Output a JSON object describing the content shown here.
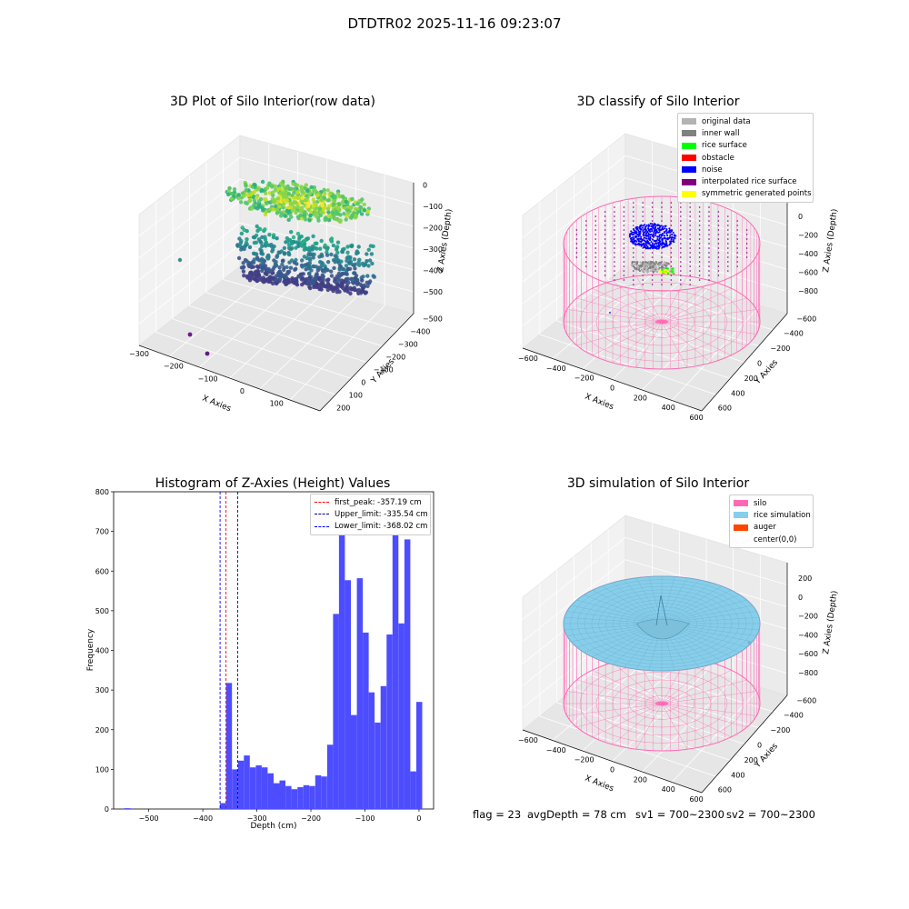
{
  "suptitle": "DTDTR02 2025-11-16 09:23:07",
  "chart_data": [
    {
      "type": "scatter",
      "subtype": "3d",
      "title": "3D Plot of Silo Interior(row data)",
      "xlabel": "X Axies",
      "ylabel": "Y Axies",
      "zlabel": "Z Axies (Depth)",
      "x_ticks": [
        "−300",
        "−200",
        "−100",
        "0",
        "100"
      ],
      "y_ticks": [
        "200",
        "100",
        "0",
        "−100",
        "−200",
        "−300",
        "−400",
        "−500"
      ],
      "z_ticks": [
        "0",
        "−100",
        "−200",
        "−300",
        "−400",
        "−500"
      ],
      "colormap": "viridis",
      "outliers": [
        {
          "x": -310,
          "y": 100,
          "z": -420
        },
        {
          "x": -230,
          "y": -330,
          "z": -520
        },
        {
          "x": -180,
          "y": -420,
          "z": -540
        }
      ]
    },
    {
      "type": "scatter",
      "subtype": "3d",
      "title": "3D classify of Silo Interior",
      "xlabel": "X Axies",
      "ylabel": "Y Axies",
      "zlabel": "Z Axies (Depth)",
      "x_ticks": [
        "−600",
        "−400",
        "−200",
        "0",
        "200",
        "400",
        "600"
      ],
      "y_ticks": [
        "600",
        "400",
        "200",
        "0",
        "−200",
        "−400",
        "−600"
      ],
      "z_ticks": [
        "0",
        "−200",
        "−400",
        "−600",
        "−800"
      ],
      "legend": [
        {
          "label": "original data",
          "color": "#b3b3b3"
        },
        {
          "label": "inner wall",
          "color": "#808080"
        },
        {
          "label": "rice surface",
          "color": "#00ff00"
        },
        {
          "label": "obstacle",
          "color": "#ff0000"
        },
        {
          "label": "noise",
          "color": "#0000ff"
        },
        {
          "label": "interpolated rice surface",
          "color": "#800080"
        },
        {
          "label": "symmetric generated points",
          "color": "#ffff00"
        }
      ],
      "silo_color": "#ff69b4"
    },
    {
      "type": "bar",
      "subtype": "histogram",
      "title": "Histogram of Z-Axies (Height) Values",
      "xlabel": "Depth (cm)",
      "ylabel": "Frequency",
      "xlim": [
        -565,
        27
      ],
      "ylim": [
        0,
        800
      ],
      "x_ticks": [
        "−500",
        "−400",
        "−300",
        "−200",
        "−100",
        "0"
      ],
      "y_ticks": [
        "0",
        "100",
        "200",
        "300",
        "400",
        "500",
        "600",
        "700",
        "800"
      ],
      "bar_color": "#4d4dff",
      "bins_left_edges": [
        -545,
        -368,
        -357,
        -346,
        -335,
        -324,
        -313,
        -302,
        -291,
        -280,
        -269,
        -258,
        -247,
        -236,
        -225,
        -214,
        -203,
        -192,
        -181,
        -170,
        -159,
        -148,
        -137,
        -126,
        -115,
        -104,
        -93,
        -82,
        -71,
        -60,
        -49,
        -38,
        -27,
        -16,
        -5
      ],
      "bin_width": 11,
      "values": [
        2,
        15,
        318,
        100,
        122,
        135,
        105,
        110,
        105,
        90,
        65,
        72,
        58,
        50,
        55,
        60,
        58,
        85,
        82,
        162,
        492,
        757,
        577,
        237,
        582,
        445,
        294,
        218,
        310,
        440,
        700,
        468,
        680,
        95,
        270
      ],
      "lines": [
        {
          "label": "first_peak: -357.19 cm",
          "x": -357.19,
          "color": "#ff0000"
        },
        {
          "label": "Upper_limit: -335.54 cm",
          "x": -335.54,
          "color": "#00008b"
        },
        {
          "label": "Lower_limit: -368.02 cm",
          "x": -368.02,
          "color": "#0000ff"
        }
      ]
    },
    {
      "type": "scatter",
      "subtype": "3d-surface",
      "title": "3D simulation of Silo Interior",
      "xlabel": "X Axies",
      "ylabel": "Y Axies",
      "zlabel": "Z Axies (Depth)",
      "x_ticks": [
        "−600",
        "−400",
        "−200",
        "0",
        "200",
        "400",
        "600"
      ],
      "y_ticks": [
        "600",
        "400",
        "200",
        "0",
        "−200",
        "−400",
        "−600"
      ],
      "z_ticks": [
        "200",
        "0",
        "−200",
        "−400",
        "−600",
        "−800"
      ],
      "legend": [
        {
          "label": "silo",
          "color": "#ff69b4"
        },
        {
          "label": "rice simulation",
          "color": "#87ceeb"
        },
        {
          "label": "auger",
          "color": "#ff4500"
        },
        {
          "label": "center(0,0)",
          "color": "#ffffff"
        }
      ]
    }
  ],
  "footer": {
    "flag": "flag = 23",
    "avg_depth": "avgDepth = 78 cm",
    "sv1": "sv1 = 700~2300",
    "sv2": "sv2 = 700~2300"
  }
}
